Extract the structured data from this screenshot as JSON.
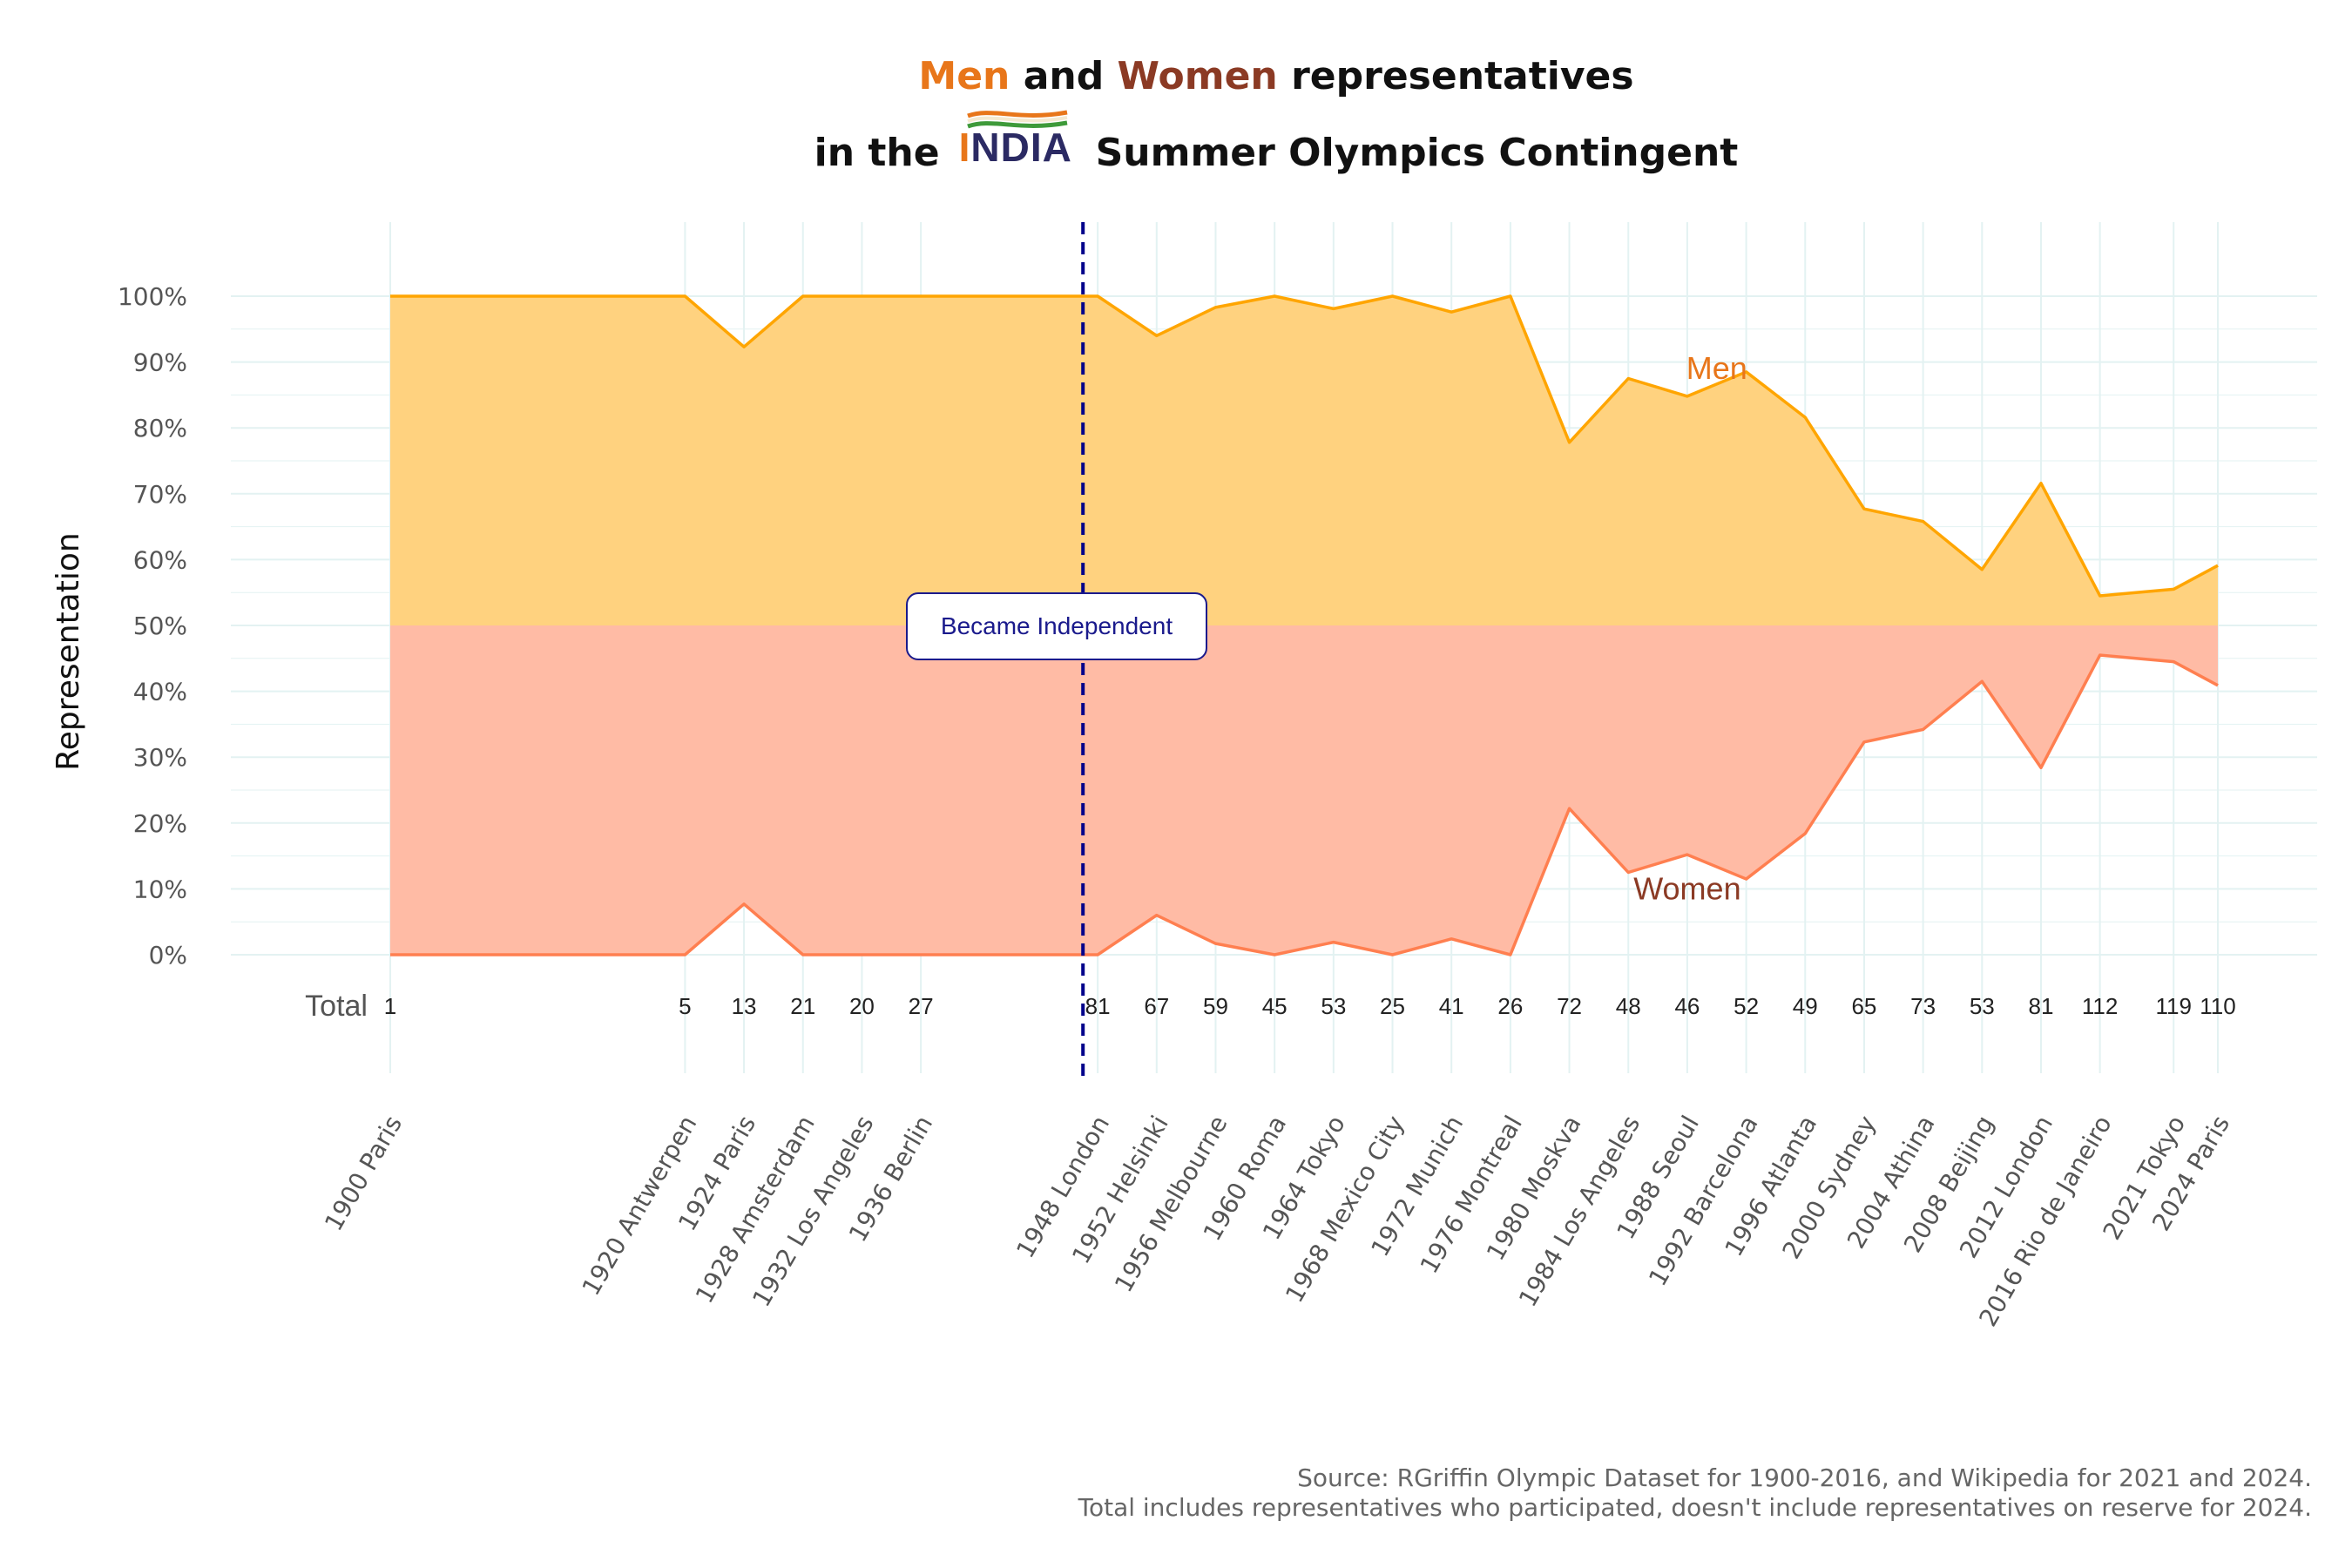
{
  "title": {
    "men_word": "Men",
    "and_word": "and",
    "women_word": "Women",
    "rest_line1": "representatives",
    "line2_prefix": "in the",
    "logo_text": "INDIA",
    "line2_suffix": "Summer Olympics Contingent"
  },
  "colors": {
    "men_fill": "#FFD27F",
    "men_line": "#FFA500",
    "women_fill": "#FFBBA5",
    "women_line": "#FF7F50",
    "men_label": "#E8761A",
    "women_label": "#8B3A24",
    "independence_line": "#00008B",
    "grid": "#E3F2F2"
  },
  "chart_data": {
    "type": "area",
    "title": "Men and Women representatives in the INDIA Summer Olympics Contingent",
    "ylabel": "Representation",
    "ylim": [
      0,
      100
    ],
    "y_ticks": [
      "0%",
      "10%",
      "20%",
      "30%",
      "40%",
      "50%",
      "60%",
      "70%",
      "80%",
      "90%",
      "100%"
    ],
    "x_axis": "year (categorical labels by Games)",
    "grid": true,
    "x": [
      {
        "year": 1900,
        "label": "1900 Paris"
      },
      {
        "year": 1920,
        "label": "1920 Antwerpen"
      },
      {
        "year": 1924,
        "label": "1924 Paris"
      },
      {
        "year": 1928,
        "label": "1928 Amsterdam"
      },
      {
        "year": 1932,
        "label": "1932 Los Angeles"
      },
      {
        "year": 1936,
        "label": "1936 Berlin"
      },
      {
        "year": 1948,
        "label": "1948 London"
      },
      {
        "year": 1952,
        "label": "1952 Helsinki"
      },
      {
        "year": 1956,
        "label": "1956 Melbourne"
      },
      {
        "year": 1960,
        "label": "1960 Roma"
      },
      {
        "year": 1964,
        "label": "1964 Tokyo"
      },
      {
        "year": 1968,
        "label": "1968 Mexico City"
      },
      {
        "year": 1972,
        "label": "1972 Munich"
      },
      {
        "year": 1976,
        "label": "1976 Montreal"
      },
      {
        "year": 1980,
        "label": "1980 Moskva"
      },
      {
        "year": 1984,
        "label": "1984 Los Angeles"
      },
      {
        "year": 1988,
        "label": "1988 Seoul"
      },
      {
        "year": 1992,
        "label": "1992 Barcelona"
      },
      {
        "year": 1996,
        "label": "1996 Atlanta"
      },
      {
        "year": 2000,
        "label": "2000 Sydney"
      },
      {
        "year": 2004,
        "label": "2004 Athina"
      },
      {
        "year": 2008,
        "label": "2008 Beijing"
      },
      {
        "year": 2012,
        "label": "2012 London"
      },
      {
        "year": 2016,
        "label": "2016 Rio de Janeiro"
      },
      {
        "year": 2021,
        "label": "2021 Tokyo"
      },
      {
        "year": 2024,
        "label": "2024 Paris"
      }
    ],
    "series": [
      {
        "name": "Men",
        "values": [
          100,
          100,
          92.3,
          100,
          100,
          100,
          100,
          94.0,
          98.3,
          100,
          98.1,
          100,
          97.6,
          100,
          77.8,
          87.5,
          84.8,
          88.5,
          81.6,
          67.7,
          65.8,
          58.5,
          71.6,
          54.5,
          55.5,
          59.1
        ]
      },
      {
        "name": "Women",
        "values": [
          0,
          0,
          7.7,
          0,
          0,
          0,
          0,
          6.0,
          1.7,
          0,
          1.9,
          0,
          2.4,
          0,
          22.2,
          12.5,
          15.2,
          11.5,
          18.4,
          32.3,
          34.2,
          41.5,
          28.4,
          45.5,
          44.5,
          40.9
        ]
      }
    ],
    "totals_label": "Total",
    "totals": [
      "1",
      "5",
      "13",
      "21",
      "20",
      "27",
      "81",
      "67",
      "59",
      "45",
      "53",
      "25",
      "41",
      "26",
      "72",
      "48",
      "46",
      "52",
      "49",
      "65",
      "73",
      "53",
      "81",
      "112",
      "119",
      "110"
    ],
    "annotation": {
      "year": 1947,
      "text": "Became Independent"
    },
    "series_labels": [
      {
        "text": "Men",
        "year": 1990,
        "value": 89
      },
      {
        "text": "Women",
        "year": 1988,
        "value": 10
      }
    ]
  },
  "source": {
    "line1": "Source: RGriffin Olympic Dataset for 1900-2016, and Wikipedia for 2021 and 2024.",
    "line2": "Total includes representatives who participated, doesn't include representatives on reserve for 2024."
  }
}
